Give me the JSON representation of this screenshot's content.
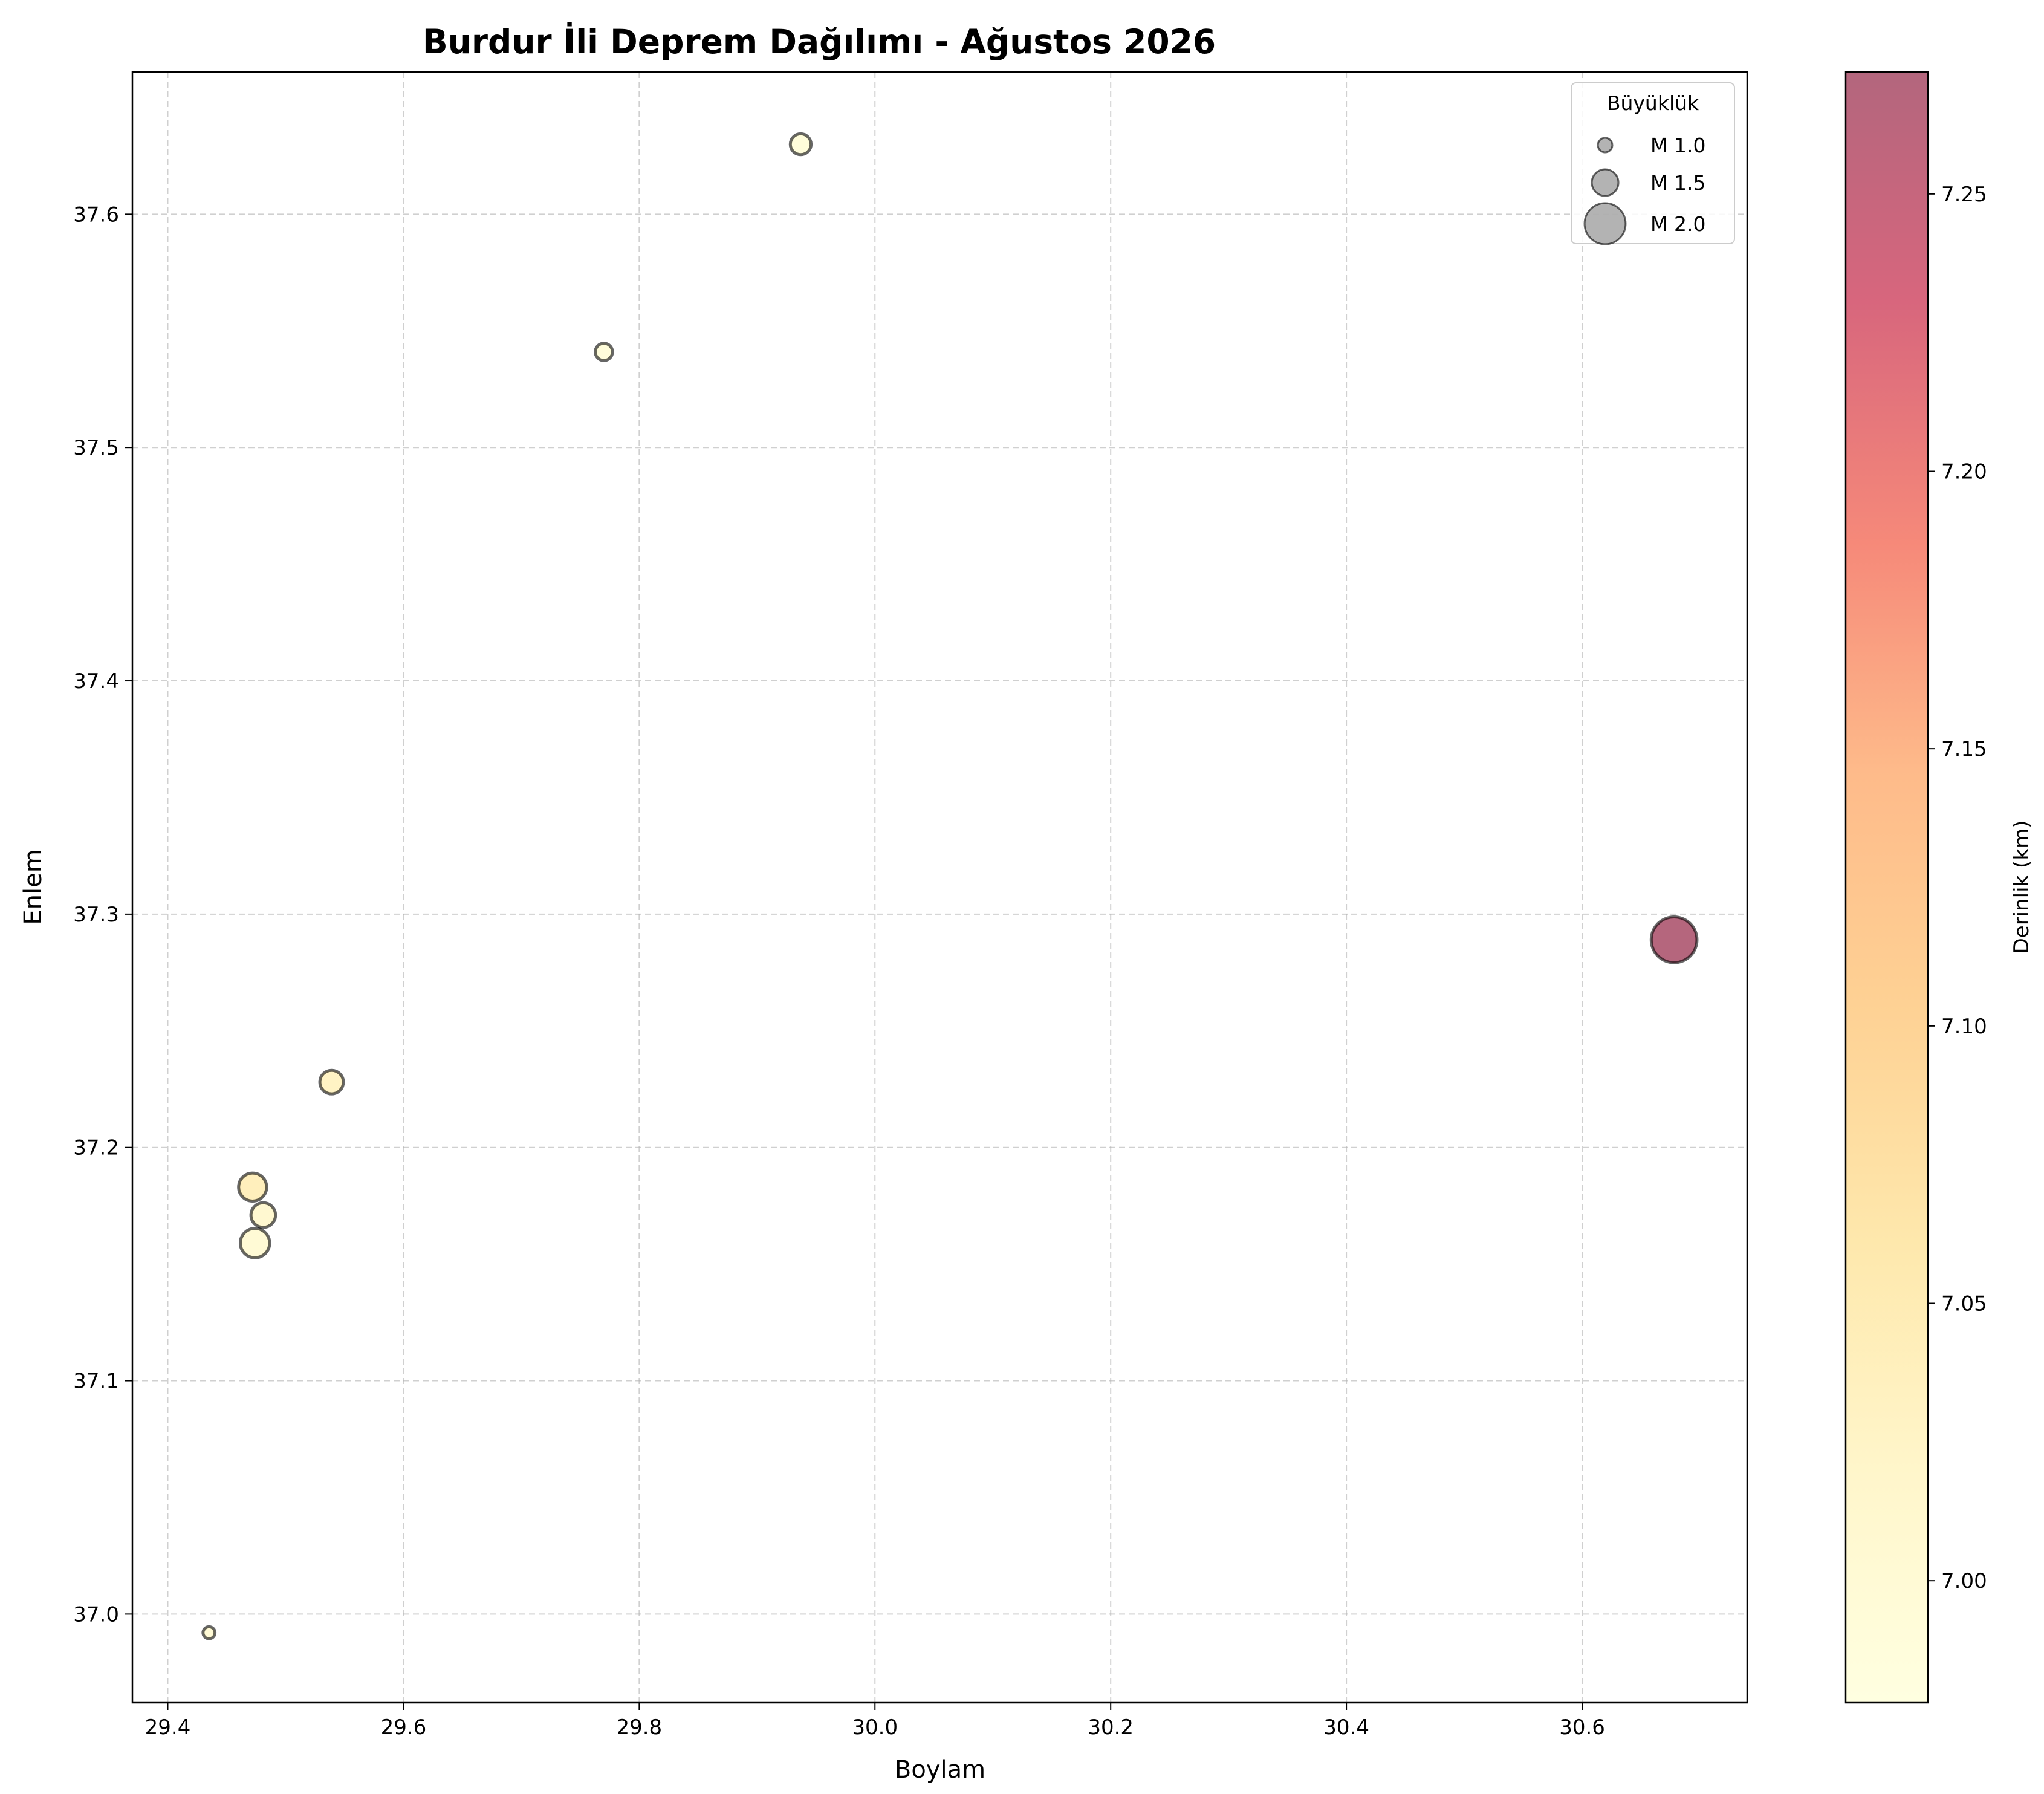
{
  "chart_data": {
    "type": "scatter",
    "title": "Burdur İli Deprem Dağılımı - Ağustos 2026",
    "xlabel": "Boylam",
    "ylabel": "Enlem",
    "xlim": [
      29.37,
      30.74
    ],
    "ylim": [
      36.962,
      37.661
    ],
    "xticks": [
      "29.4",
      "29.6",
      "29.8",
      "30.0",
      "30.2",
      "30.4",
      "30.6"
    ],
    "yticks": [
      "37.0",
      "37.1",
      "37.2",
      "37.3",
      "37.4",
      "37.5",
      "37.6"
    ],
    "grid": true,
    "points": [
      {
        "lon": 30.678,
        "lat": 37.289,
        "mag": 2.15,
        "depth": 7.27
      },
      {
        "lon": 29.937,
        "lat": 37.63,
        "mag": 1.27,
        "depth": 6.99
      },
      {
        "lon": 29.77,
        "lat": 37.541,
        "mag": 1.12,
        "depth": 6.99
      },
      {
        "lon": 29.539,
        "lat": 37.228,
        "mag": 1.38,
        "depth": 7.03
      },
      {
        "lon": 29.472,
        "lat": 37.183,
        "mag": 1.55,
        "depth": 7.04
      },
      {
        "lon": 29.481,
        "lat": 37.171,
        "mag": 1.42,
        "depth": 7.01
      },
      {
        "lon": 29.474,
        "lat": 37.159,
        "mag": 1.6,
        "depth": 7.0
      },
      {
        "lon": 29.435,
        "lat": 36.992,
        "mag": 0.88,
        "depth": 7.0
      }
    ],
    "legend": {
      "title": "Büyüklük",
      "placement": "upper right",
      "items": [
        {
          "label": "M 1.0",
          "mag": 1.0
        },
        {
          "label": "M 1.5",
          "mag": 1.5
        },
        {
          "label": "M 2.0",
          "mag": 2.0
        }
      ]
    },
    "colorbar": {
      "label": "Derinlik (km)",
      "range": [
        6.978,
        7.272
      ],
      "ticks": [
        "7.00",
        "7.05",
        "7.10",
        "7.15",
        "7.20",
        "7.25"
      ],
      "colormap": [
        "#ffffcc",
        "#fff0a8",
        "#fed976",
        "#feb24c",
        "#fd8d3c",
        "#f03b20",
        "#bd0026",
        "#800026"
      ],
      "alpha": 0.6
    }
  }
}
